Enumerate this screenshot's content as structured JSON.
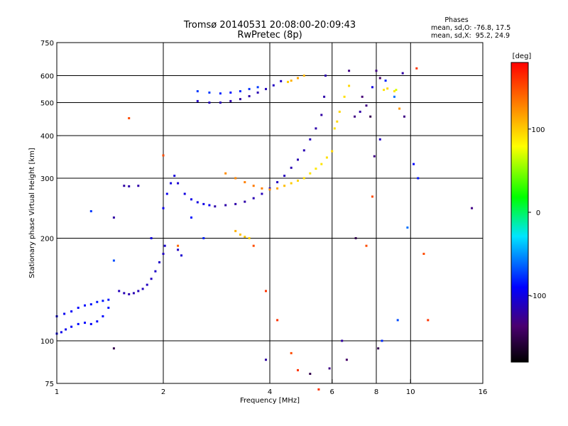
{
  "figure": {
    "title": "Tromsø 20140531 20:08:00-20:09:43",
    "subtitle": "RwPretec (8p)",
    "stats": {
      "heading": "Phases",
      "line1": "mean, sd,O: -76.8, 17.5",
      "line2": "mean, sd,X:  95.2, 24.9"
    },
    "colorbar": {
      "label": "[deg]",
      "ticks": [
        {
          "value": 100,
          "label": "100"
        },
        {
          "value": 0,
          "label": "0"
        },
        {
          "value": -100,
          "label": "-100"
        }
      ]
    }
  },
  "chart_data": {
    "type": "scatter",
    "title": "Tromsø 20140531 20:08:00-20:09:43",
    "subtitle": "RwPretec (8p)",
    "xlabel": "Frequency [MHz]",
    "ylabel": "Stationary phase Virtual Height [km]",
    "xscale": "log",
    "yscale": "log",
    "xlim": [
      1,
      16
    ],
    "ylim": [
      75,
      750
    ],
    "xticks": [
      1,
      2,
      4,
      6,
      8,
      10,
      16
    ],
    "yticks": [
      75,
      100,
      200,
      300,
      400,
      500,
      600,
      750
    ],
    "grid_x": [
      2,
      4,
      6,
      8,
      10
    ],
    "grid_y": [
      100,
      200,
      300,
      400,
      500,
      600
    ],
    "color_scale": {
      "name": "phase [deg]",
      "min": -180,
      "max": 180
    },
    "series": [
      {
        "points": [
          [
            1.0,
            105,
            -95
          ],
          [
            1.03,
            106,
            -97
          ],
          [
            1.06,
            108,
            -96
          ],
          [
            1.1,
            110,
            -92
          ],
          [
            1.15,
            112,
            -88
          ],
          [
            1.2,
            113,
            -90
          ],
          [
            1.25,
            112,
            -92
          ],
          [
            1.3,
            114,
            -90
          ],
          [
            1.35,
            118,
            -88
          ],
          [
            1.4,
            125,
            -85
          ]
        ]
      },
      {
        "points": [
          [
            1.0,
            118,
            -98
          ],
          [
            1.05,
            120,
            -95
          ],
          [
            1.1,
            122,
            -92
          ],
          [
            1.15,
            125,
            -90
          ],
          [
            1.2,
            127,
            -88
          ],
          [
            1.25,
            128,
            -86
          ],
          [
            1.3,
            130,
            -85
          ],
          [
            1.35,
            131,
            -85
          ],
          [
            1.4,
            132,
            -84
          ]
        ]
      },
      {
        "points": [
          [
            1.5,
            140,
            -112
          ],
          [
            1.55,
            138,
            -114
          ],
          [
            1.6,
            137,
            -116
          ],
          [
            1.65,
            138,
            -115
          ],
          [
            1.7,
            140,
            -113
          ],
          [
            1.75,
            142,
            -112
          ],
          [
            1.8,
            146,
            -110
          ],
          [
            1.85,
            152,
            -110
          ],
          [
            1.9,
            160,
            -108
          ],
          [
            1.95,
            170,
            -108
          ],
          [
            2.0,
            180,
            -110
          ],
          [
            2.02,
            190,
            -105
          ]
        ]
      },
      {
        "points": [
          [
            2.0,
            245,
            -95
          ],
          [
            2.05,
            270,
            -95
          ],
          [
            2.1,
            290,
            -100
          ],
          [
            2.15,
            305,
            -102
          ],
          [
            2.2,
            290,
            -105
          ],
          [
            2.3,
            270,
            -100
          ],
          [
            2.4,
            260,
            -98
          ],
          [
            2.5,
            255,
            -100
          ],
          [
            2.6,
            252,
            -98
          ],
          [
            2.7,
            250,
            -95
          ]
        ]
      },
      {
        "points": [
          [
            2.8,
            248,
            -118
          ],
          [
            3.0,
            250,
            -118
          ],
          [
            3.2,
            252,
            -118
          ],
          [
            3.4,
            256,
            -118
          ],
          [
            3.6,
            262,
            -115
          ],
          [
            3.8,
            270,
            -112
          ],
          [
            4.0,
            280,
            -110
          ],
          [
            4.2,
            292,
            -110
          ],
          [
            4.4,
            305,
            -112
          ],
          [
            4.6,
            322,
            -115
          ],
          [
            4.8,
            340,
            -115
          ],
          [
            5.0,
            362,
            -115
          ],
          [
            5.2,
            390,
            -112
          ],
          [
            5.4,
            420,
            -118
          ],
          [
            5.6,
            460,
            -120
          ],
          [
            5.7,
            520,
            -118
          ],
          [
            5.75,
            600,
            -118
          ]
        ]
      },
      {
        "points": [
          [
            3.0,
            310,
            125
          ],
          [
            3.2,
            300,
            128
          ],
          [
            3.4,
            292,
            130
          ],
          [
            3.6,
            285,
            132
          ],
          [
            3.8,
            280,
            130
          ],
          [
            4.0,
            278,
            125
          ],
          [
            4.2,
            280,
            115
          ],
          [
            4.4,
            285,
            105
          ],
          [
            4.6,
            290,
            100
          ],
          [
            4.8,
            295,
            96
          ],
          [
            5.0,
            300,
            92
          ],
          [
            5.2,
            310,
            90
          ],
          [
            5.4,
            320,
            88
          ],
          [
            5.6,
            330,
            90
          ],
          [
            5.8,
            345,
            92
          ],
          [
            6.0,
            360,
            95
          ]
        ]
      },
      {
        "points": [
          [
            2.5,
            505,
            -110
          ],
          [
            2.7,
            500,
            -112
          ],
          [
            2.9,
            500,
            -115
          ],
          [
            3.1,
            505,
            -118
          ],
          [
            3.3,
            512,
            -120
          ],
          [
            3.5,
            522,
            -118
          ],
          [
            3.7,
            535,
            -115
          ],
          [
            3.9,
            548,
            -112
          ],
          [
            4.1,
            562,
            -110
          ],
          [
            4.3,
            578,
            -108
          ]
        ]
      },
      {
        "points": [
          [
            2.5,
            540,
            -75
          ],
          [
            2.7,
            535,
            -75
          ],
          [
            2.9,
            532,
            -80
          ],
          [
            3.1,
            535,
            -85
          ],
          [
            3.3,
            540,
            -80
          ],
          [
            3.5,
            548,
            -78
          ],
          [
            3.7,
            555,
            -75
          ]
        ]
      },
      {
        "points": [
          [
            4.5,
            575,
            100
          ],
          [
            4.6,
            580,
            110
          ],
          [
            4.8,
            590,
            115
          ],
          [
            5.0,
            600,
            108
          ]
        ]
      },
      {
        "points": [
          [
            6.1,
            420,
            90
          ],
          [
            6.2,
            440,
            95
          ],
          [
            6.3,
            470,
            95
          ],
          [
            6.5,
            520,
            92
          ],
          [
            6.7,
            560,
            95
          ]
        ]
      },
      {
        "points": [
          [
            3.2,
            210,
            110
          ],
          [
            3.3,
            205,
            105
          ],
          [
            3.4,
            202,
            100
          ],
          [
            3.5,
            200,
            98
          ]
        ]
      },
      {
        "points": [
          [
            1.25,
            240,
            -75
          ],
          [
            1.45,
            230,
            -120
          ],
          [
            1.55,
            285,
            -120
          ],
          [
            1.6,
            284,
            -118
          ],
          [
            1.7,
            285,
            -118
          ],
          [
            1.45,
            172,
            -70
          ],
          [
            1.85,
            200,
            -100
          ],
          [
            2.2,
            185,
            -110
          ],
          [
            2.25,
            178,
            -105
          ],
          [
            2.4,
            230,
            -85
          ],
          [
            2.6,
            200,
            -80
          ]
        ]
      },
      {
        "points": [
          [
            1.6,
            450,
            150
          ],
          [
            2.0,
            350,
            150
          ],
          [
            2.2,
            190,
            140
          ],
          [
            3.6,
            190,
            150
          ],
          [
            3.9,
            140,
            160
          ],
          [
            4.2,
            115,
            160
          ],
          [
            4.6,
            92,
            150
          ],
          [
            5.2,
            80,
            -150
          ],
          [
            5.5,
            72,
            160
          ],
          [
            5.9,
            83,
            -130
          ],
          [
            6.4,
            100,
            -120
          ],
          [
            6.6,
            88,
            -140
          ],
          [
            7.5,
            190,
            150
          ],
          [
            7.8,
            265,
            150
          ],
          [
            7.9,
            348,
            -130
          ],
          [
            8.2,
            390,
            -110
          ],
          [
            8.4,
            545,
            90
          ],
          [
            8.6,
            550,
            95
          ],
          [
            9.0,
            540,
            90
          ],
          [
            9.2,
            115,
            -70
          ],
          [
            9.8,
            215,
            -60
          ],
          [
            10.2,
            330,
            -90
          ],
          [
            10.5,
            300,
            -85
          ],
          [
            10.9,
            180,
            150
          ],
          [
            11.2,
            115,
            160
          ],
          [
            10.4,
            630,
            160
          ],
          [
            14.9,
            245,
            -130
          ],
          [
            8.3,
            100,
            -80
          ],
          [
            8.1,
            95,
            -150
          ],
          [
            7.0,
            200,
            -150
          ]
        ]
      },
      {
        "points": [
          [
            1.45,
            95,
            -150
          ],
          [
            3.9,
            88,
            -120
          ],
          [
            4.8,
            82,
            160
          ],
          [
            6.7,
            620,
            -130
          ],
          [
            7.3,
            520,
            -135
          ],
          [
            7.5,
            490,
            -130
          ],
          [
            7.7,
            455,
            -150
          ],
          [
            8.0,
            620,
            -130
          ],
          [
            8.2,
            590,
            -140
          ],
          [
            9.5,
            610,
            -120
          ],
          [
            9.1,
            545,
            70
          ],
          [
            9.3,
            480,
            120
          ],
          [
            9.6,
            455,
            -130
          ],
          [
            6.95,
            455,
            -130
          ],
          [
            7.2,
            470,
            -120
          ],
          [
            7.8,
            555,
            -100
          ],
          [
            8.5,
            580,
            -80
          ],
          [
            9.0,
            520,
            -60
          ]
        ]
      }
    ]
  }
}
